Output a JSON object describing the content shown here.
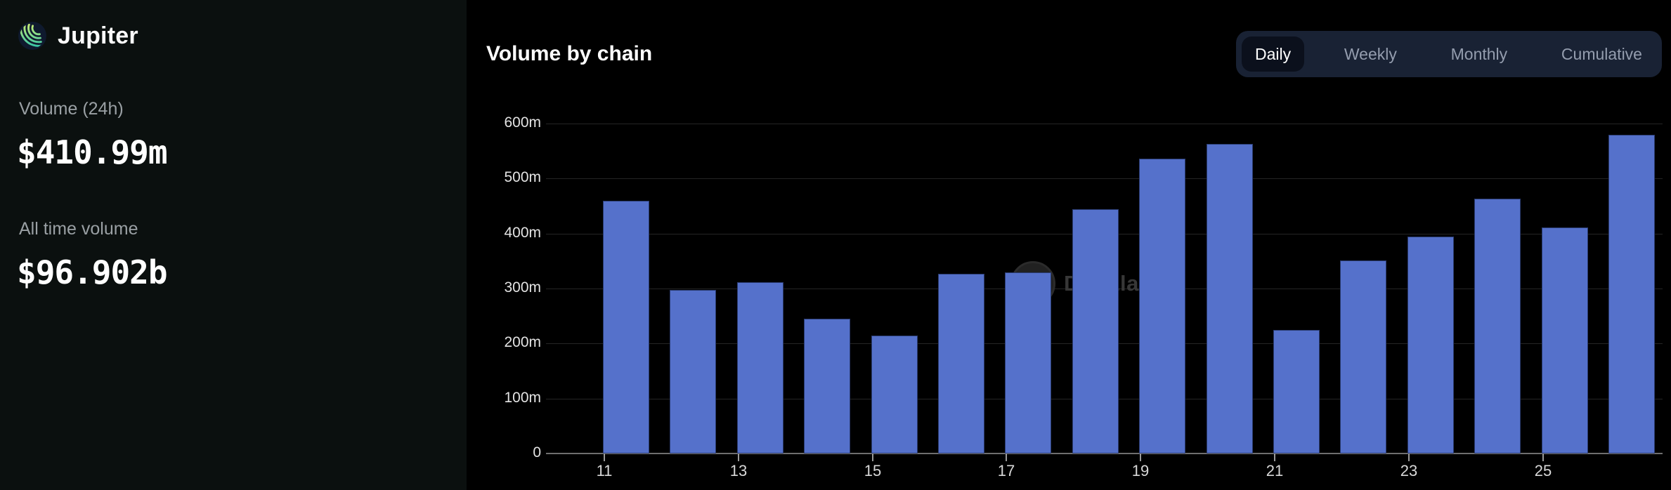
{
  "sidebar": {
    "app_name": "Jupiter",
    "logo_icon": "jupiter-orbit-logo",
    "stats": [
      {
        "label": "Volume (24h)",
        "value": "$410.99m"
      },
      {
        "label": "All time volume",
        "value": "$96.902b"
      }
    ]
  },
  "header": {
    "title": "Volume by chain",
    "tabs": [
      {
        "label": "Daily",
        "active": true
      },
      {
        "label": "Weekly",
        "active": false
      },
      {
        "label": "Monthly",
        "active": false
      },
      {
        "label": "Cumulative",
        "active": false
      }
    ]
  },
  "watermark": {
    "text": "DefiLlama",
    "icon": "llama-icon"
  },
  "colors": {
    "bar": "#5571cb",
    "sidebar_bg": "#0b100f",
    "main_bg": "#000000",
    "tab_group_bg": "#192234",
    "active_tab_bg": "#0b101c",
    "accent_green": "#c9f15f",
    "accent_teal": "#2cc5b5"
  },
  "chart_data": {
    "type": "bar",
    "title": "Volume by chain",
    "x": [
      11,
      12,
      13,
      14,
      15,
      16,
      17,
      18,
      19,
      20,
      21,
      22,
      23,
      24,
      25,
      26
    ],
    "values": [
      460,
      297,
      312,
      245,
      215,
      327,
      329,
      444,
      536,
      563,
      225,
      351,
      394,
      464,
      411,
      580
    ],
    "x_tick_labels": [
      "11",
      "13",
      "15",
      "17",
      "19",
      "21",
      "23",
      "25"
    ],
    "y_tick_labels": [
      "0",
      "100m",
      "200m",
      "300m",
      "400m",
      "500m",
      "600m"
    ],
    "ylim": [
      0,
      600
    ],
    "xlabel": "",
    "ylabel": "",
    "grid": "horizontal",
    "legend": "none"
  }
}
